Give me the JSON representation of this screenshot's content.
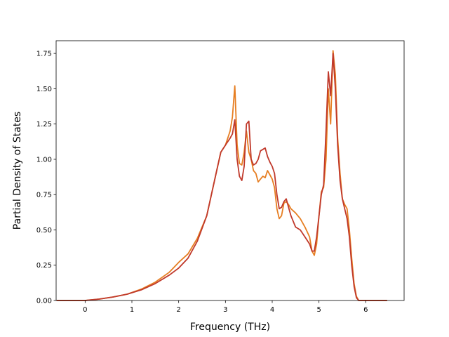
{
  "chart_data": {
    "type": "line",
    "title": "",
    "xlabel": "Frequency (THz)",
    "ylabel": "Partial Density of States",
    "xlim": [
      -0.62,
      6.82
    ],
    "ylim": [
      0.0,
      1.84
    ],
    "xticks": [
      0,
      1,
      2,
      3,
      4,
      5,
      6
    ],
    "xtick_labels": [
      "0",
      "1",
      "2",
      "3",
      "4",
      "5",
      "6"
    ],
    "yticks": [
      0.0,
      0.25,
      0.5,
      0.75,
      1.0,
      1.25,
      1.5,
      1.75
    ],
    "ytick_labels": [
      "0.00",
      "0.25",
      "0.50",
      "0.75",
      "1.00",
      "1.25",
      "1.50",
      "1.75"
    ],
    "grid": false,
    "legend": "none",
    "series": [
      {
        "color": "#e67e22",
        "x": [
          -0.6,
          0.0,
          0.3,
          0.6,
          0.9,
          1.2,
          1.5,
          1.8,
          2.0,
          2.2,
          2.4,
          2.6,
          2.8,
          2.9,
          3.0,
          3.1,
          3.15,
          3.2,
          3.25,
          3.3,
          3.35,
          3.4,
          3.45,
          3.5,
          3.55,
          3.6,
          3.65,
          3.7,
          3.75,
          3.8,
          3.85,
          3.9,
          3.95,
          4.0,
          4.05,
          4.1,
          4.15,
          4.2,
          4.25,
          4.3,
          4.35,
          4.4,
          4.5,
          4.6,
          4.7,
          4.8,
          4.85,
          4.9,
          4.95,
          5.0,
          5.05,
          5.1,
          5.15,
          5.2,
          5.25,
          5.3,
          5.35,
          5.4,
          5.45,
          5.5,
          5.55,
          5.6,
          5.65,
          5.7,
          5.75,
          5.8,
          5.85,
          5.9,
          6.0,
          6.1,
          6.45
        ],
        "y": [
          0.0,
          0.0,
          0.01,
          0.025,
          0.045,
          0.08,
          0.13,
          0.2,
          0.27,
          0.33,
          0.44,
          0.6,
          0.9,
          1.05,
          1.1,
          1.2,
          1.3,
          1.52,
          1.1,
          0.97,
          0.96,
          1.05,
          1.2,
          1.05,
          1.0,
          0.92,
          0.9,
          0.84,
          0.86,
          0.88,
          0.87,
          0.92,
          0.89,
          0.86,
          0.8,
          0.65,
          0.58,
          0.6,
          0.69,
          0.7,
          0.68,
          0.65,
          0.62,
          0.58,
          0.52,
          0.45,
          0.35,
          0.32,
          0.4,
          0.6,
          0.77,
          0.8,
          1.0,
          1.5,
          1.25,
          1.77,
          1.6,
          1.15,
          0.9,
          0.72,
          0.68,
          0.65,
          0.5,
          0.3,
          0.12,
          0.03,
          0.0,
          0.0,
          0.0,
          0.0,
          0.0
        ]
      },
      {
        "color": "#c0392b",
        "x": [
          -0.6,
          0.0,
          0.3,
          0.6,
          0.9,
          1.2,
          1.5,
          1.8,
          2.0,
          2.2,
          2.4,
          2.6,
          2.8,
          2.9,
          3.0,
          3.1,
          3.15,
          3.2,
          3.25,
          3.3,
          3.35,
          3.4,
          3.45,
          3.5,
          3.55,
          3.6,
          3.65,
          3.7,
          3.75,
          3.8,
          3.85,
          3.9,
          3.95,
          4.0,
          4.05,
          4.1,
          4.15,
          4.2,
          4.25,
          4.3,
          4.35,
          4.4,
          4.5,
          4.6,
          4.7,
          4.8,
          4.85,
          4.9,
          4.95,
          5.0,
          5.05,
          5.1,
          5.15,
          5.2,
          5.25,
          5.3,
          5.35,
          5.4,
          5.45,
          5.5,
          5.55,
          5.6,
          5.65,
          5.7,
          5.75,
          5.8,
          5.85,
          5.9,
          6.0,
          6.1,
          6.45
        ],
        "y": [
          0.0,
          0.0,
          0.01,
          0.025,
          0.045,
          0.075,
          0.12,
          0.18,
          0.23,
          0.3,
          0.42,
          0.6,
          0.9,
          1.05,
          1.1,
          1.15,
          1.18,
          1.28,
          1.0,
          0.88,
          0.85,
          0.95,
          1.25,
          1.27,
          1.0,
          0.96,
          0.97,
          1.0,
          1.06,
          1.07,
          1.08,
          1.02,
          0.98,
          0.95,
          0.9,
          0.75,
          0.65,
          0.66,
          0.7,
          0.72,
          0.66,
          0.6,
          0.52,
          0.5,
          0.45,
          0.4,
          0.35,
          0.35,
          0.45,
          0.6,
          0.75,
          0.82,
          1.2,
          1.62,
          1.45,
          1.75,
          1.5,
          1.1,
          0.85,
          0.72,
          0.65,
          0.58,
          0.45,
          0.25,
          0.1,
          0.02,
          0.0,
          0.0,
          0.0,
          0.0,
          0.0
        ]
      }
    ]
  }
}
